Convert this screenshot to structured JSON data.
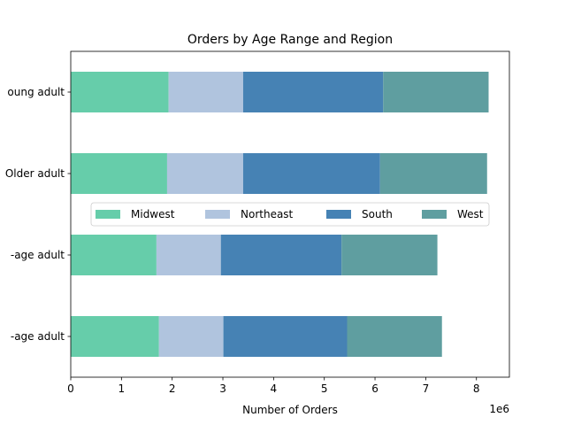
{
  "chart_data": {
    "type": "bar",
    "orientation": "horizontal",
    "stacked": true,
    "title": "Orders by Age Range and Region",
    "xlabel": "Number of Orders",
    "ylabel": "",
    "x_scale_label": "1e6",
    "xlim": [
      0,
      8.65
    ],
    "x_ticks": [
      0,
      1,
      2,
      3,
      4,
      5,
      6,
      7,
      8
    ],
    "x_tick_labels": [
      "0",
      "1",
      "2",
      "3",
      "4",
      "5",
      "6",
      "7",
      "8"
    ],
    "categories": [
      "-age adult",
      "-age adult",
      "Older adult",
      "oung adult"
    ],
    "series": [
      {
        "name": "Midwest",
        "color": "#66cdaa",
        "values": [
          1.74,
          1.69,
          1.9,
          1.93
        ]
      },
      {
        "name": "Northeast",
        "color": "#b0c4de",
        "values": [
          1.27,
          1.27,
          1.5,
          1.47
        ]
      },
      {
        "name": "South",
        "color": "#4682b4",
        "values": [
          2.44,
          2.38,
          2.7,
          2.76
        ]
      },
      {
        "name": "West",
        "color": "#5f9ea0",
        "values": [
          1.87,
          1.89,
          2.11,
          2.08
        ]
      }
    ],
    "legend": {
      "placement": "center",
      "columns": 4
    },
    "grid": false
  }
}
